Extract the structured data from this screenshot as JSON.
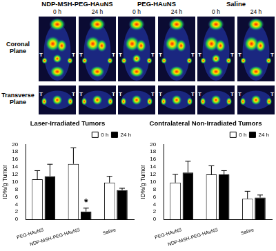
{
  "figure": {
    "groups": [
      {
        "label": "NDP-MSH-PEG-HAuNS",
        "times": [
          "0 h",
          "24 h"
        ]
      },
      {
        "label": "PEG-HAuNS",
        "times": [
          "0 h",
          "24 h"
        ]
      },
      {
        "label": "Saline",
        "times": [
          "0 h",
          "24 h"
        ]
      }
    ],
    "rows": [
      "Coronal Plane",
      "Transverse Plane"
    ],
    "tumor_marker": "T"
  },
  "chart_data": [
    {
      "type": "bar",
      "title": "Laser-Irradiated Tumors",
      "y_label": "ID%/g Tumor",
      "categories": [
        "PEG-HAuNS",
        "NDP-MSH-PEG-HAuNS",
        "Saline"
      ],
      "series": [
        {
          "name": "0 h",
          "color": "#ffffff",
          "values": [
            10.7,
            14.8,
            9.8
          ],
          "errors": [
            2.3,
            4.3,
            1.7
          ]
        },
        {
          "name": "24 h",
          "color": "#000000",
          "values": [
            11.5,
            2.1,
            7.8
          ],
          "errors": [
            3.2,
            0.9,
            0.5
          ]
        }
      ],
      "ylim": [
        0,
        20
      ],
      "yticks": [
        0,
        2,
        4,
        6,
        8,
        10,
        12,
        14,
        16,
        18,
        20
      ],
      "grid": false,
      "legend": "upper right",
      "annotations": [
        {
          "text": "*",
          "series": "24 h",
          "category": "NDP-MSH-PEG-HAuNS"
        }
      ]
    },
    {
      "type": "bar",
      "title": "Contralateral Non-Irradiated Tumors",
      "y_label": "ID%/g Tumor",
      "categories": [
        "PEG-HAuNS",
        "NDP-MSH-PEG-HAuNS",
        "Saline"
      ],
      "series": [
        {
          "name": "0 h",
          "color": "#ffffff",
          "values": [
            9.8,
            12,
            5.5
          ],
          "errors": [
            2.2,
            2.3,
            2
          ]
        },
        {
          "name": "24 h",
          "color": "#000000",
          "values": [
            12.5,
            12,
            5.8
          ],
          "errors": [
            3,
            1,
            0.7
          ]
        }
      ],
      "ylim": [
        0,
        20
      ],
      "yticks": [
        0,
        2,
        4,
        6,
        8,
        10,
        12,
        14,
        16,
        18,
        20
      ],
      "grid": false,
      "legend": "upper right"
    }
  ]
}
